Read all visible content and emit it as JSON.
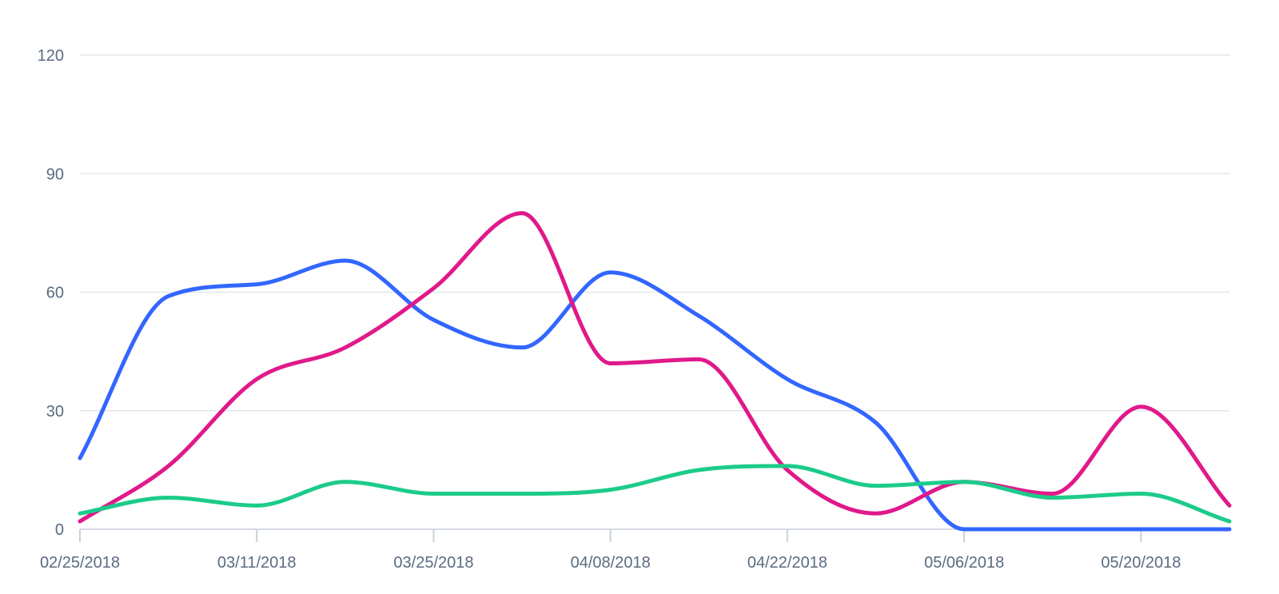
{
  "chart_data": {
    "type": "line",
    "title": "",
    "xlabel": "",
    "ylabel": "",
    "ylim": [
      0,
      120
    ],
    "yticks": [
      0,
      30,
      60,
      90,
      120
    ],
    "grid": true,
    "legend": "none",
    "x": [
      "02/25/2018",
      "03/04/2018",
      "03/11/2018",
      "03/18/2018",
      "03/25/2018",
      "04/01/2018",
      "04/08/2018",
      "04/15/2018",
      "04/22/2018",
      "04/29/2018",
      "05/06/2018",
      "05/13/2018",
      "05/20/2018",
      "05/27/2018"
    ],
    "xtick_labels": [
      "02/25/2018",
      "03/11/2018",
      "03/25/2018",
      "04/08/2018",
      "04/22/2018",
      "05/06/2018",
      "05/20/2018"
    ],
    "series": [
      {
        "color": "#3366ff",
        "values": [
          18,
          59,
          62,
          68,
          53,
          46,
          65,
          54,
          38,
          27,
          0,
          0,
          0,
          0
        ]
      },
      {
        "color": "#e0198a",
        "values": [
          2,
          16,
          38,
          46,
          61,
          80,
          42,
          43,
          15,
          4,
          12,
          9,
          31,
          6
        ]
      },
      {
        "color": "#1ccb8a",
        "values": [
          4,
          8,
          6,
          12,
          9,
          9,
          10,
          15,
          16,
          11,
          12,
          8,
          9,
          2
        ]
      }
    ]
  }
}
